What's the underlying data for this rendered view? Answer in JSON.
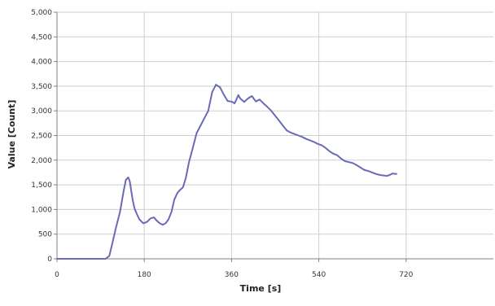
{
  "chart_data": {
    "type": "line",
    "xlabel": "Time [s]",
    "ylabel": "Value [Count]",
    "xlim": [
      0,
      900
    ],
    "ylim": [
      0,
      5000
    ],
    "x_ticks": [
      0,
      180,
      360,
      540,
      720
    ],
    "x_tick_labels": [
      "0",
      "180",
      "360",
      "540",
      "720"
    ],
    "y_ticks": [
      0,
      500,
      1000,
      1500,
      2000,
      2500,
      3000,
      3500,
      4000,
      4500,
      5000
    ],
    "y_tick_labels": [
      "0",
      "500",
      "1,000",
      "1,500",
      "2,000",
      "2,500",
      "3,000",
      "3,500",
      "4,000",
      "4,500",
      "5,000"
    ],
    "grid": true,
    "line_color": "#6a6ab8",
    "series": [
      {
        "x": [
          0,
          40,
          80,
          100,
          108,
          115,
          122,
          130,
          137,
          142,
          147,
          150,
          152,
          156,
          160,
          165,
          170,
          178,
          186,
          193,
          200,
          206,
          212,
          218,
          224,
          230,
          236,
          242,
          248,
          254,
          260,
          266,
          272,
          280,
          288,
          296,
          304,
          312,
          320,
          328,
          336,
          344,
          352,
          358,
          362,
          366,
          370,
          374,
          378,
          386,
          394,
          402,
          410,
          418,
          426,
          434,
          442,
          450,
          458,
          466,
          474,
          482,
          490,
          498,
          506,
          514,
          522,
          530,
          538,
          546,
          554,
          562,
          570,
          578,
          586,
          594,
          602,
          610,
          618,
          626,
          634,
          642,
          650,
          658,
          666,
          674,
          680,
          686,
          692,
          700
        ],
        "values": [
          0,
          0,
          0,
          0,
          60,
          350,
          650,
          950,
          1350,
          1600,
          1650,
          1580,
          1450,
          1200,
          1020,
          900,
          800,
          720,
          750,
          820,
          840,
          770,
          720,
          690,
          720,
          800,
          950,
          1200,
          1330,
          1400,
          1450,
          1650,
          1950,
          2250,
          2550,
          2700,
          2850,
          3000,
          3380,
          3530,
          3480,
          3330,
          3200,
          3190,
          3180,
          3150,
          3230,
          3320,
          3250,
          3180,
          3250,
          3300,
          3190,
          3230,
          3150,
          3080,
          3000,
          2900,
          2800,
          2700,
          2600,
          2560,
          2530,
          2500,
          2470,
          2430,
          2400,
          2370,
          2330,
          2300,
          2250,
          2180,
          2130,
          2100,
          2030,
          1980,
          1960,
          1940,
          1900,
          1850,
          1800,
          1780,
          1750,
          1720,
          1700,
          1690,
          1680,
          1700,
          1730,
          1720
        ]
      }
    ]
  }
}
